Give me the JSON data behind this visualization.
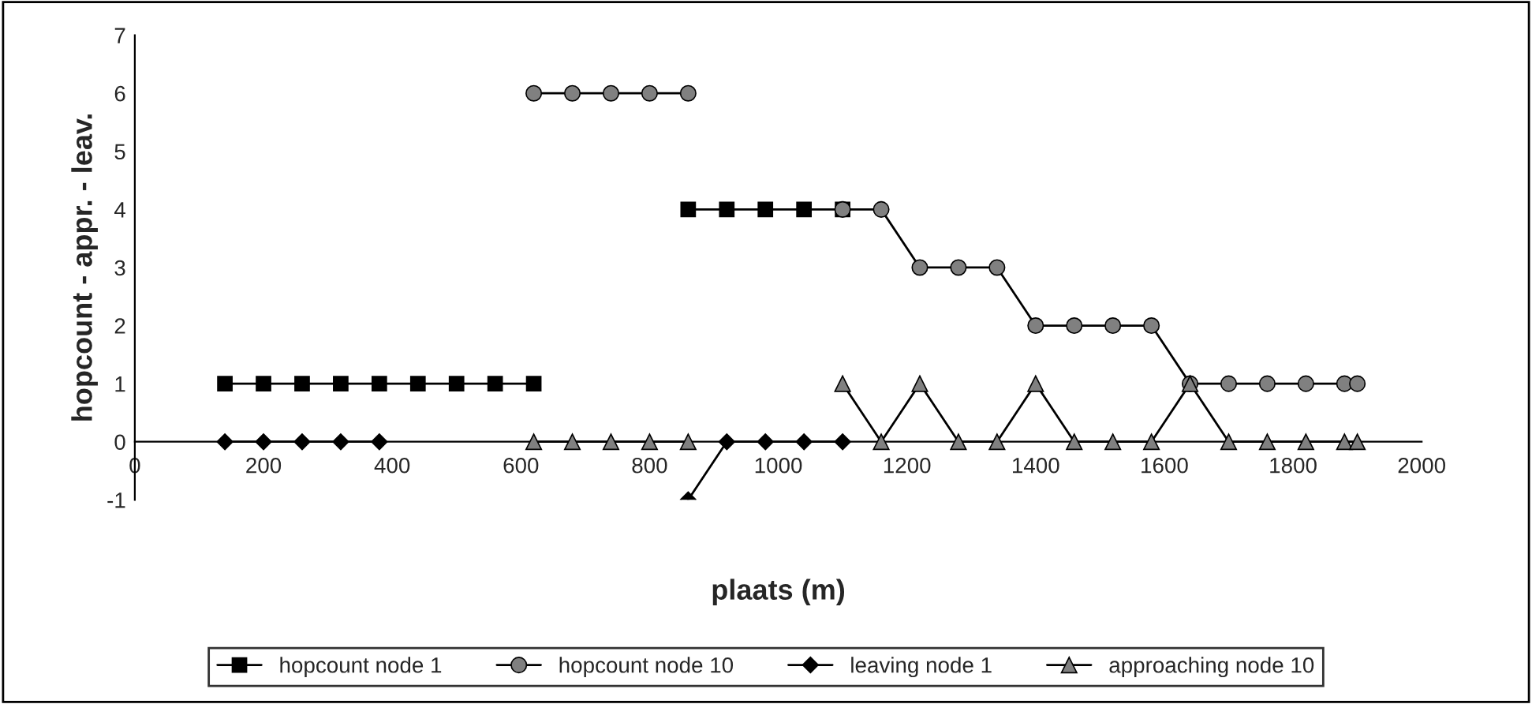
{
  "chart_data": {
    "type": "line",
    "xlabel": "plaats (m)",
    "ylabel": "hopcount - appr. - leav.",
    "xlim": [
      0,
      2000
    ],
    "xticks": [
      0,
      200,
      400,
      600,
      800,
      1000,
      1200,
      1400,
      1600,
      1800,
      2000
    ],
    "ylim": [
      -1,
      7
    ],
    "yticks": [
      -1,
      0,
      1,
      2,
      3,
      4,
      5,
      6,
      7
    ],
    "grid": false,
    "legend": "bottom",
    "series": [
      {
        "name": "hopcount node 1",
        "color": "#000000",
        "marker": "square",
        "x": [
          140,
          200,
          260,
          320,
          380,
          440,
          500,
          560,
          620,
          740,
          860,
          920,
          980,
          1040,
          1100
        ],
        "values": [
          1,
          1,
          1,
          1,
          1,
          1,
          1,
          1,
          1,
          null,
          4,
          4,
          4,
          4,
          4
        ]
      },
      {
        "name": "hopcount node 10",
        "color": "#808080",
        "marker": "circle",
        "x": [
          620,
          680,
          740,
          800,
          860,
          980,
          1100,
          1160,
          1220,
          1280,
          1340,
          1400,
          1460,
          1520,
          1580,
          1640,
          1700,
          1760,
          1820,
          1880,
          1900
        ],
        "values": [
          6,
          6,
          6,
          6,
          6,
          null,
          4,
          4,
          3,
          3,
          3,
          2,
          2,
          2,
          2,
          1,
          1,
          1,
          1,
          1,
          1
        ]
      },
      {
        "name": "leaving node 1",
        "color": "#000000",
        "marker": "diamond",
        "x": [
          140,
          200,
          260,
          320,
          380,
          620,
          860,
          920,
          980,
          1040,
          1100
        ],
        "values": [
          0,
          0,
          0,
          0,
          0,
          null,
          -1,
          0,
          0,
          0,
          0
        ]
      },
      {
        "name": "approaching node 10",
        "color": "#808080",
        "marker": "triangle",
        "x": [
          620,
          680,
          740,
          800,
          860,
          920,
          980,
          1040,
          1100,
          1160,
          1220,
          1280,
          1340,
          1400,
          1460,
          1520,
          1580,
          1640,
          1700,
          1760,
          1820,
          1880,
          1900
        ],
        "values": [
          0,
          0,
          0,
          0,
          0,
          null,
          null,
          null,
          1,
          0,
          1,
          0,
          0,
          1,
          0,
          0,
          0,
          1,
          0,
          0,
          0,
          0,
          0
        ]
      }
    ]
  }
}
